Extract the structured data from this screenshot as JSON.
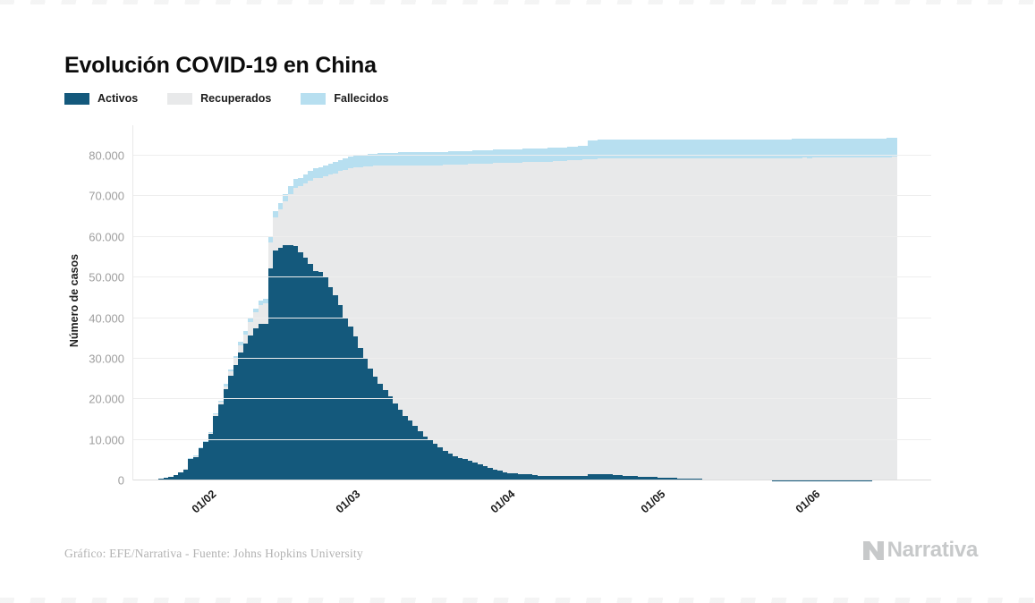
{
  "page": {
    "title": "Evolución COVID-19 en China",
    "footer": "Gráfico: EFE/Narrativa - Fuente: Johns Hopkins University",
    "brand": "Narrativa"
  },
  "colors": {
    "activos": "#14597c",
    "recuperados": "#e8e9ea",
    "fallecidos": "#b7dff0",
    "gridline": "#eeeeee",
    "axis_text": "#9e9e9e"
  },
  "legend": [
    {
      "label": "Activos",
      "color": "#14597c"
    },
    {
      "label": "Recuperados",
      "color": "#e8e9ea"
    },
    {
      "label": "Fallecidos",
      "color": "#b7dff0"
    }
  ],
  "chart_data": {
    "type": "bar",
    "stacked": true,
    "title": "Evolución COVID-19 en China",
    "xlabel": "",
    "ylabel": "Número de casos",
    "ylim": [
      0,
      87500
    ],
    "grid": "horizontal",
    "legend_position": "top-left",
    "ytick_values": [
      0,
      10000,
      20000,
      30000,
      40000,
      50000,
      60000,
      70000,
      80000
    ],
    "ytick_labels": [
      "0",
      "10.000",
      "20.000",
      "30.000",
      "40.000",
      "50.000",
      "60.000",
      "70.000",
      "80.000"
    ],
    "xticks": [
      {
        "label": "01/02",
        "index": 10
      },
      {
        "label": "01/03",
        "index": 39
      },
      {
        "label": "01/04",
        "index": 70
      },
      {
        "label": "01/05",
        "index": 100
      },
      {
        "label": "01/06",
        "index": 131
      }
    ],
    "dates": [
      "22/01",
      "23/01",
      "24/01",
      "25/01",
      "26/01",
      "27/01",
      "28/01",
      "29/01",
      "30/01",
      "31/01",
      "01/02",
      "02/02",
      "03/02",
      "04/02",
      "05/02",
      "06/02",
      "07/02",
      "08/02",
      "09/02",
      "10/02",
      "11/02",
      "12/02",
      "13/02",
      "14/02",
      "15/02",
      "16/02",
      "17/02",
      "18/02",
      "19/02",
      "20/02",
      "21/02",
      "22/02",
      "23/02",
      "24/02",
      "25/02",
      "26/02",
      "27/02",
      "28/02",
      "29/02",
      "01/03",
      "02/03",
      "03/03",
      "04/03",
      "05/03",
      "06/03",
      "07/03",
      "08/03",
      "09/03",
      "10/03",
      "11/03",
      "12/03",
      "13/03",
      "14/03",
      "15/03",
      "16/03",
      "17/03",
      "18/03",
      "19/03",
      "20/03",
      "21/03",
      "22/03",
      "23/03",
      "24/03",
      "25/03",
      "26/03",
      "27/03",
      "28/03",
      "29/03",
      "30/03",
      "31/03",
      "01/04",
      "02/04",
      "03/04",
      "04/04",
      "05/04",
      "06/04",
      "07/04",
      "08/04",
      "09/04",
      "10/04",
      "11/04",
      "12/04",
      "13/04",
      "14/04",
      "15/04",
      "16/04",
      "17/04",
      "18/04",
      "19/04",
      "20/04",
      "21/04",
      "22/04",
      "23/04",
      "24/04",
      "25/04",
      "26/04",
      "27/04",
      "28/04",
      "29/04",
      "30/04",
      "01/05",
      "02/05",
      "03/05",
      "04/05",
      "05/05",
      "06/05",
      "07/05",
      "08/05",
      "09/05",
      "10/05",
      "11/05",
      "12/05",
      "13/05",
      "14/05",
      "15/05",
      "16/05",
      "17/05",
      "18/05",
      "19/05",
      "20/05",
      "21/05",
      "22/05",
      "23/05",
      "24/05",
      "25/05",
      "26/05",
      "27/05",
      "28/05",
      "29/05",
      "30/05",
      "31/05",
      "01/06",
      "02/06",
      "03/06",
      "04/06",
      "05/06",
      "06/06",
      "07/06",
      "08/06",
      "09/06",
      "10/06",
      "11/06",
      "12/06",
      "13/06",
      "14/06",
      "15/06",
      "16/06",
      "17/06"
    ],
    "series": [
      {
        "name": "Activos",
        "color": "#14597c",
        "values": [
          503,
          595,
          858,
          1325,
          1970,
          2737,
          5277,
          5834,
          7835,
          9375,
          11357,
          15806,
          18677,
          22373,
          25762,
          28515,
          31586,
          33787,
          35705,
          37424,
          38638,
          38560,
          52309,
          56736,
          57331,
          57899,
          58014,
          57805,
          56303,
          54965,
          53284,
          51606,
          51371,
          49980,
          47673,
          45604,
          43258,
          40087,
          37952,
          35489,
          32690,
          30085,
          27541,
          25465,
          23855,
          22194,
          20689,
          18876,
          17514,
          15980,
          14736,
          13439,
          12104,
          10736,
          9906,
          8978,
          8082,
          7299,
          6603,
          6053,
          5579,
          5191,
          4778,
          4348,
          3997,
          3511,
          3128,
          2691,
          2472,
          2004,
          1863,
          1727,
          1562,
          1558,
          1454,
          1326,
          1190,
          1160,
          1116,
          1089,
          1156,
          1088,
          1107,
          1137,
          1107,
          1081,
          1577,
          1524,
          1523,
          1558,
          1488,
          1399,
          1261,
          1169,
          1084,
          1024,
          972,
          923,
          899,
          833,
          717,
          634,
          602,
          570,
          517,
          491,
          436,
          394,
          379,
          280,
          267,
          244,
          225,
          207,
          193,
          187,
          172,
          165,
          152,
          148,
          135,
          128,
          116,
          107,
          100,
          92,
          87,
          79,
          75,
          72,
          69,
          65,
          63,
          60,
          59,
          58,
          57,
          60,
          63,
          65,
          69,
          80,
          99,
          120,
          150,
          184,
          220,
          254
        ]
      },
      {
        "name": "Recuperados",
        "color": "#e8e9ea",
        "values": [
          28,
          30,
          36,
          39,
          49,
          58,
          101,
          120,
          135,
          214,
          275,
          463,
          614,
          843,
          1115,
          1439,
          1806,
          2222,
          3219,
          3918,
          4636,
          5082,
          6217,
          8101,
          9419,
          10844,
          12552,
          14376,
          16155,
          18264,
          20659,
          22888,
          23187,
          25015,
          27676,
          30084,
          32930,
          36329,
          39002,
          41625,
          44518,
          47204,
          49856,
          52045,
          53726,
          55404,
          56927,
          58742,
          60106,
          61644,
          62901,
          64196,
          65541,
          66911,
          67749,
          68679,
          69601,
          70420,
          71150,
          71740,
          72244,
          72703,
          73159,
          73650,
          74051,
          74588,
          74971,
          75448,
          75700,
          76206,
          76405,
          76571,
          76760,
          76886,
          77000,
          77167,
          77279,
          77370,
          77455,
          77525,
          77575,
          77663,
          77741,
          77816,
          77893,
          77956,
          77611,
          77679,
          77737,
          77784,
          77869,
          77944,
          78088,
          78191,
          78277,
          78334,
          78394,
          78448,
          78523,
          78573,
          78653,
          78737,
          78770,
          78800,
          78852,
          78885,
          78931,
          78965,
          78993,
          79077,
          79105,
          79135,
          79157,
          79180,
          79207,
          79222,
          79246,
          79261,
          79276,
          79288,
          79303,
          79313,
          79326,
          79336,
          79344,
          79352,
          79359,
          79368,
          79375,
          79380,
          79386,
          79392,
          79396,
          79400,
          79403,
          79406,
          79410,
          79413,
          79417,
          79421,
          79425,
          79429,
          79433,
          79437,
          79441,
          79445,
          79449,
          79453
        ]
      },
      {
        "name": "Fallecidos",
        "color": "#b7dff0",
        "values": [
          17,
          18,
          26,
          42,
          56,
          82,
          131,
          133,
          171,
          213,
          259,
          361,
          425,
          491,
          563,
          633,
          718,
          805,
          905,
          1012,
          1112,
          1117,
          1369,
          1521,
          1663,
          1770,
          1868,
          2004,
          2118,
          2236,
          2345,
          2442,
          2592,
          2663,
          2715,
          2744,
          2788,
          2835,
          2870,
          2912,
          2943,
          2981,
          3012,
          3042,
          3070,
          3097,
          3119,
          3136,
          3158,
          3169,
          3176,
          3189,
          3199,
          3213,
          3226,
          3237,
          3245,
          3248,
          3255,
          3261,
          3270,
          3277,
          3281,
          3287,
          3292,
          3295,
          3300,
          3304,
          3308,
          3312,
          3316,
          3322,
          3326,
          3330,
          3333,
          3335,
          3335,
          3335,
          3336,
          3339,
          3343,
          3343,
          3345,
          3345,
          3342,
          3346,
          4636,
          4636,
          4636,
          4636,
          4636,
          4636,
          4636,
          4636,
          4636,
          4637,
          4637,
          4637,
          4637,
          4637,
          4637,
          4637,
          4637,
          4637,
          4637,
          4637,
          4637,
          4637,
          4637,
          4637,
          4637,
          4637,
          4637,
          4637,
          4637,
          4637,
          4637,
          4637,
          4637,
          4638,
          4638,
          4638,
          4638,
          4638,
          4638,
          4638,
          4638,
          4638,
          4638,
          4638,
          4638,
          4638,
          4638,
          4638,
          4638,
          4638,
          4638,
          4638,
          4638,
          4638,
          4638,
          4638,
          4638,
          4638,
          4638,
          4638,
          4638,
          4638
        ]
      }
    ]
  }
}
